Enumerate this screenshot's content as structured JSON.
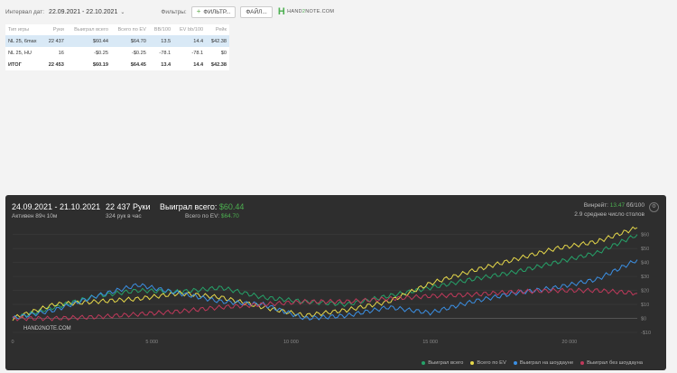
{
  "topbar": {
    "interval_label": "Интервал дат:",
    "dates": "22.09.2021 - 22.10.2021",
    "filters_label": "Фильтры:",
    "filter_button": "ФИЛЬТР...",
    "file_button": "ФАЙЛ...",
    "logo_left": "HAND",
    "logo_accent": "2",
    "logo_right": "NOTE.COM"
  },
  "table": {
    "headers": [
      "Тип игры",
      "Руки",
      "Выиграл всего",
      "Всего по EV",
      "BB/100",
      "EV bb/100",
      "Рейк"
    ],
    "rows": [
      {
        "cells": [
          "NL 25, 6max",
          "22 437",
          "$60.44",
          "$64.70",
          "13.5",
          "14.4",
          "$42.38"
        ],
        "signs": [
          "",
          "",
          "pos",
          "pos",
          "pos",
          "pos",
          "pos"
        ],
        "selected": true
      },
      {
        "cells": [
          "NL 25, HU",
          "16",
          "-$0.25",
          "-$0.25",
          "-78.1",
          "-78.1",
          "$0"
        ],
        "signs": [
          "",
          "",
          "neg",
          "neg",
          "neg",
          "neg",
          "pos"
        ],
        "selected": false
      },
      {
        "cells": [
          "ИТОГ",
          "22 453",
          "$60.19",
          "$64.45",
          "13.4",
          "14.4",
          "$42.38"
        ],
        "signs": [
          "",
          "",
          "pos",
          "pos",
          "pos",
          "pos",
          "pos"
        ],
        "selected": false,
        "total": true
      }
    ]
  },
  "panel": {
    "range": "24.09.2021 - 21.10.2021",
    "active": "Активен 89ч 10м",
    "hands": "22 437 Руки",
    "rate": "324 рук в час",
    "won_label": "Выиграл всего:",
    "won_value": "$60.44",
    "ev_label": "Всего по EV:",
    "ev_value": "$64.70",
    "winrate_label": "Винрейт:",
    "winrate_value": "13.47",
    "winrate_unit": "бб/100",
    "tables_text": "2.9 среднее число столов"
  },
  "chart_data": {
    "type": "line",
    "xlim": [
      0,
      22437
    ],
    "ylim": [
      -10,
      65
    ],
    "x_ticks": [
      0,
      5000,
      10000,
      15000,
      20000
    ],
    "x_tick_labels": [
      "0",
      "5 000",
      "10 000",
      "15 000",
      "20 000"
    ],
    "y_ticks": [
      -10,
      0,
      10,
      20,
      30,
      40,
      50,
      60
    ],
    "y_tick_labels": [
      "-$10",
      "$0",
      "$10",
      "$20",
      "$30",
      "$40",
      "$50",
      "$60"
    ],
    "series": [
      {
        "name": "Выиграл всего",
        "color": "#26a269",
        "x": [
          0,
          1500,
          3000,
          4500,
          6000,
          7500,
          9000,
          10500,
          12000,
          13500,
          15000,
          16500,
          18000,
          19500,
          21000,
          22437
        ],
        "y": [
          0,
          8,
          16,
          20,
          19,
          22,
          15,
          12,
          10,
          16,
          22,
          28,
          33,
          40,
          47,
          60
        ]
      },
      {
        "name": "Всего по EV",
        "color": "#e6d84a",
        "x": [
          0,
          1500,
          3000,
          4500,
          6000,
          7500,
          9000,
          10500,
          12000,
          13500,
          15000,
          16500,
          18000,
          19500,
          21000,
          22437
        ],
        "y": [
          0,
          10,
          12,
          14,
          18,
          15,
          8,
          2,
          6,
          12,
          25,
          34,
          42,
          50,
          55,
          65
        ]
      },
      {
        "name": "Выиграл на шоудауне",
        "color": "#3b8fe3",
        "x": [
          0,
          1500,
          3000,
          4500,
          6000,
          7500,
          9000,
          10500,
          12000,
          13500,
          15000,
          16500,
          18000,
          19500,
          21000,
          22437
        ],
        "y": [
          0,
          6,
          16,
          24,
          18,
          12,
          10,
          0,
          2,
          8,
          4,
          12,
          18,
          22,
          28,
          42
        ]
      },
      {
        "name": "Выиграл без шоудауна",
        "color": "#c0395b",
        "x": [
          0,
          1500,
          3000,
          4500,
          6000,
          7500,
          9000,
          10500,
          12000,
          13500,
          15000,
          16500,
          18000,
          19500,
          21000,
          22437
        ],
        "y": [
          0,
          0,
          1,
          3,
          5,
          8,
          10,
          12,
          12,
          14,
          16,
          17,
          19,
          20,
          20,
          18
        ]
      }
    ]
  }
}
